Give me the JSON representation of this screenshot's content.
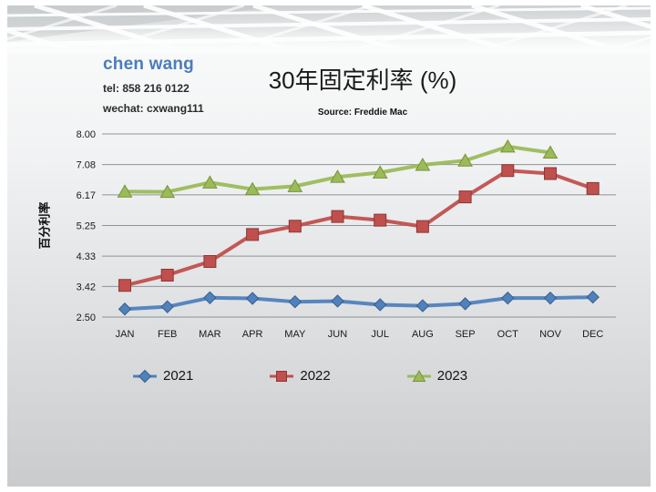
{
  "slide": {
    "contact": {
      "name": "chen wang",
      "tel": "tel: 858 216 0122",
      "wechat": "wechat: cxwang111"
    },
    "title": "30年固定利率 (%)",
    "source": "Source: Freddie Mac"
  },
  "chart_data": {
    "type": "line",
    "title": "30年固定利率 (%)",
    "subtitle": "Source: Freddie Mac",
    "xlabel": "",
    "ylabel": "百分利率",
    "ylim": [
      2.5,
      8.0
    ],
    "y_ticks": [
      8.0,
      7.08,
      6.17,
      5.25,
      4.33,
      3.42,
      2.5
    ],
    "grid": "horizontal",
    "legend_position": "bottom",
    "grid_color": "#8f9397",
    "categories": [
      "JAN",
      "FEB",
      "MAR",
      "APR",
      "MAY",
      "JUN",
      "JUL",
      "AUG",
      "SEP",
      "OCT",
      "NOV",
      "DEC"
    ],
    "series": [
      {
        "name": "2021",
        "marker": "diamond",
        "color": "#4F81BD",
        "edge_color": "#385D8A",
        "values": [
          2.74,
          2.81,
          3.08,
          3.06,
          2.96,
          2.98,
          2.87,
          2.84,
          2.9,
          3.07,
          3.07,
          3.1
        ]
      },
      {
        "name": "2022",
        "marker": "square",
        "color": "#C0504D",
        "edge_color": "#8C3836",
        "values": [
          3.45,
          3.76,
          4.17,
          4.98,
          5.23,
          5.52,
          5.41,
          5.22,
          6.11,
          6.9,
          6.81,
          6.36
        ]
      },
      {
        "name": "2023",
        "marker": "triangle",
        "color": "#9BBB59",
        "edge_color": "#77933C",
        "values": [
          6.27,
          6.26,
          6.54,
          6.34,
          6.43,
          6.71,
          6.84,
          7.07,
          7.2,
          7.62,
          7.44
        ]
      }
    ]
  }
}
